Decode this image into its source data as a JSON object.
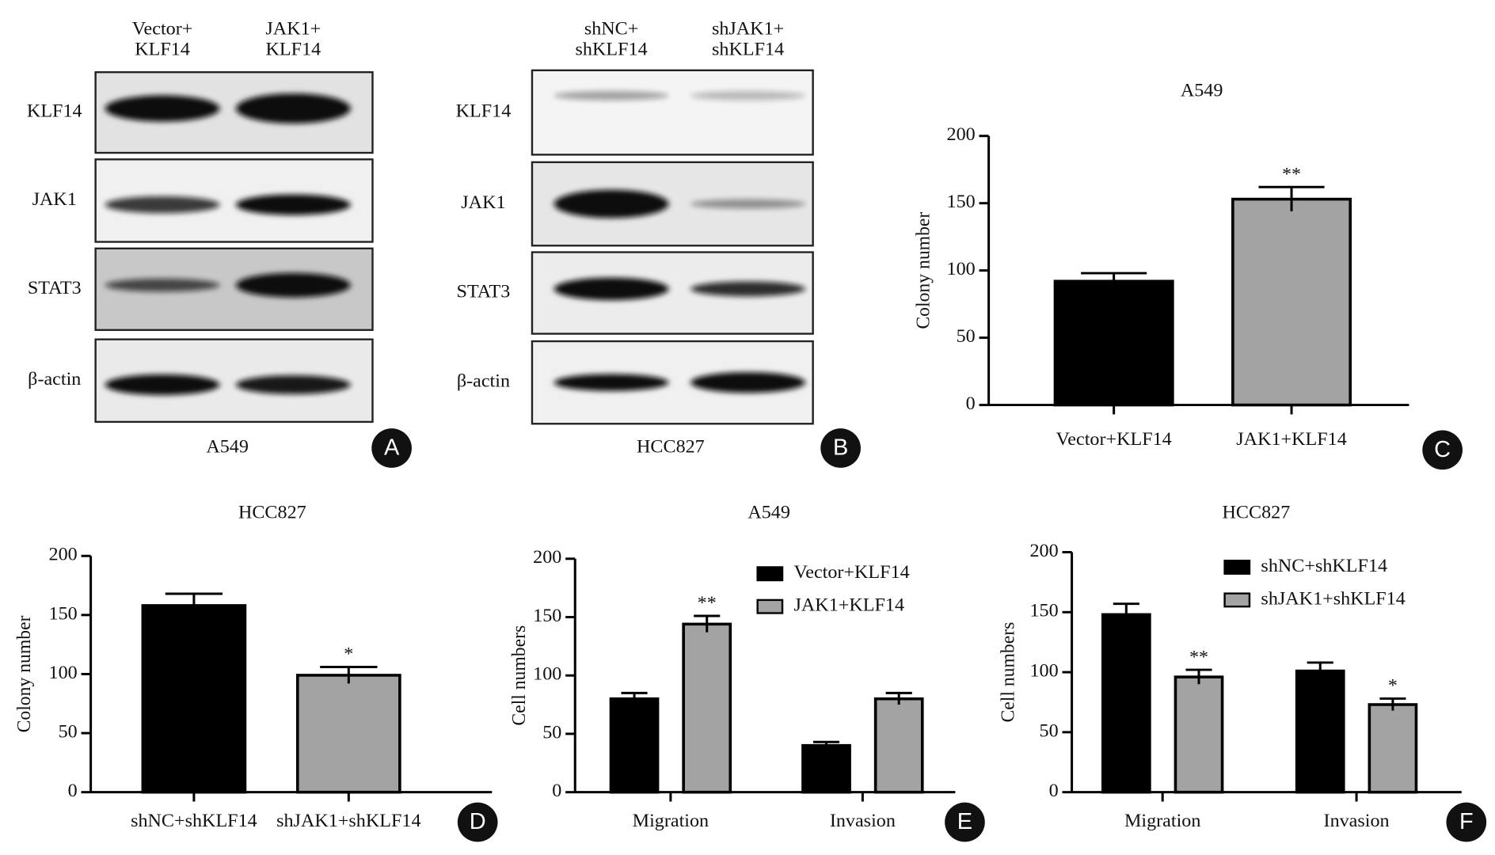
{
  "blots": [
    {
      "panel": "A",
      "cell_line": "A549",
      "columns": [
        [
          "Vector+",
          "KLF14"
        ],
        [
          "JAK1+",
          "KLF14"
        ]
      ],
      "rows": [
        "KLF14",
        "JAK1",
        "STAT3",
        "β-actin"
      ]
    },
    {
      "panel": "B",
      "cell_line": "HCC827",
      "columns": [
        [
          "shNC+",
          "shKLF14"
        ],
        [
          "shJAK1+",
          "shKLF14"
        ]
      ],
      "rows": [
        "KLF14",
        "JAK1",
        "STAT3",
        "β-actin"
      ]
    }
  ],
  "chart_data": [
    {
      "type": "bar",
      "panel": "C",
      "title": "A549",
      "y_label": "Colony number",
      "categories": [
        "Vector+KLF14",
        "JAK1+KLF14"
      ],
      "series": [
        {
          "colors": [
            "#000000",
            "#a3a3a3"
          ],
          "values": [
            92,
            153
          ],
          "errors": [
            6,
            9
          ],
          "significance": [
            null,
            "**"
          ]
        }
      ],
      "ylim": [
        0,
        200
      ],
      "yticks": [
        0,
        50,
        100,
        150,
        200
      ]
    },
    {
      "type": "bar",
      "panel": "D",
      "title": "HCC827",
      "y_label": "Colony number",
      "categories": [
        "shNC+shKLF14",
        "shJAK1+shKLF14"
      ],
      "series": [
        {
          "colors": [
            "#000000",
            "#a3a3a3"
          ],
          "values": [
            158,
            99
          ],
          "errors": [
            10,
            7
          ],
          "significance": [
            null,
            "*"
          ]
        }
      ],
      "ylim": [
        0,
        200
      ],
      "yticks": [
        0,
        50,
        100,
        150,
        200
      ]
    },
    {
      "type": "grouped-bar",
      "panel": "E",
      "title": "A549",
      "y_label": "Cell numbers",
      "categories": [
        "Migration",
        "Invasion"
      ],
      "series": [
        {
          "name": "Vector+KLF14",
          "color": "#000000",
          "values": [
            80,
            40
          ],
          "errors": [
            5,
            3
          ],
          "significance": [
            null,
            null
          ]
        },
        {
          "name": "JAK1+KLF14",
          "color": "#a3a3a3",
          "values": [
            144,
            80
          ],
          "errors": [
            7,
            5
          ],
          "significance": [
            "**",
            null
          ]
        }
      ],
      "ylim": [
        0,
        200
      ],
      "yticks": [
        0,
        50,
        100,
        150,
        200
      ]
    },
    {
      "type": "grouped-bar",
      "panel": "F",
      "title": "HCC827",
      "y_label": "Cell numbers",
      "categories": [
        "Migration",
        "Invasion"
      ],
      "series": [
        {
          "name": "shNC+shKLF14",
          "color": "#000000",
          "values": [
            148,
            101
          ],
          "errors": [
            9,
            7
          ],
          "significance": [
            null,
            null
          ]
        },
        {
          "name": "shJAK1+shKLF14",
          "color": "#a3a3a3",
          "values": [
            96,
            73
          ],
          "errors": [
            6,
            5
          ],
          "significance": [
            "**",
            "*"
          ]
        }
      ],
      "ylim": [
        0,
        200
      ],
      "yticks": [
        0,
        50,
        100,
        150,
        200
      ]
    }
  ]
}
